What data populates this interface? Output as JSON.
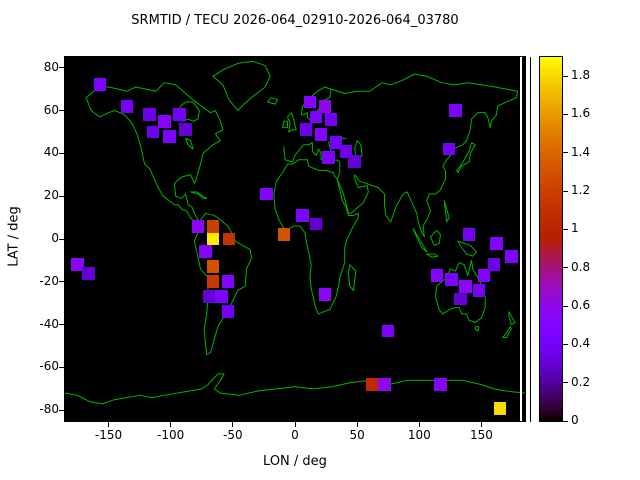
{
  "chart_data": {
    "type": "heatmap",
    "title": "SRMTID / TECU 2026-064_02910-2026-064_03780",
    "xlabel": "LON / deg",
    "ylabel": "LAT / deg",
    "xlim": [
      -185,
      185
    ],
    "ylim": [
      -85,
      85
    ],
    "xticks": [
      -150,
      -100,
      -50,
      0,
      50,
      100,
      150
    ],
    "yticks": [
      -80,
      -60,
      -40,
      -20,
      0,
      20,
      40,
      60,
      80
    ],
    "background_color": "#000000",
    "coastline_color": "#00b400",
    "grid": false,
    "legend_position": "right-colorbar",
    "colorbar": {
      "min": 0,
      "max": 1.9,
      "tick_labels": [
        "0",
        "0.2",
        "0.4",
        "0.6",
        "0.8",
        "1",
        "1.2",
        "1.4",
        "1.6",
        "1.8"
      ],
      "palette": "gnuplot-default black-violet-red-yellow"
    },
    "cell_size": {
      "lon": 10,
      "lat": 6
    },
    "cells": [
      {
        "lon": -157,
        "lat": 72,
        "value": 0.45
      },
      {
        "lon": -135,
        "lat": 62,
        "value": 0.4
      },
      {
        "lon": -117,
        "lat": 58,
        "value": 0.35
      },
      {
        "lon": -105,
        "lat": 55,
        "value": 0.5
      },
      {
        "lon": -93,
        "lat": 58,
        "value": 0.4
      },
      {
        "lon": -114,
        "lat": 50,
        "value": 0.35
      },
      {
        "lon": -101,
        "lat": 48,
        "value": 0.45
      },
      {
        "lon": -88,
        "lat": 51,
        "value": 0.3
      },
      {
        "lon": 12,
        "lat": 64,
        "value": 0.5
      },
      {
        "lon": 24,
        "lat": 62,
        "value": 0.6
      },
      {
        "lon": 17,
        "lat": 57,
        "value": 0.45
      },
      {
        "lon": 29,
        "lat": 56,
        "value": 0.4
      },
      {
        "lon": 9,
        "lat": 51,
        "value": 0.35
      },
      {
        "lon": 21,
        "lat": 49,
        "value": 0.5
      },
      {
        "lon": 33,
        "lat": 45,
        "value": 0.4
      },
      {
        "lon": 27,
        "lat": 38,
        "value": 0.45
      },
      {
        "lon": 41,
        "lat": 41,
        "value": 0.35
      },
      {
        "lon": 48,
        "lat": 36,
        "value": 0.3
      },
      {
        "lon": 129,
        "lat": 60,
        "value": 0.45
      },
      {
        "lon": 124,
        "lat": 42,
        "value": 0.4
      },
      {
        "lon": -23,
        "lat": 21,
        "value": 0.5
      },
      {
        "lon": -9,
        "lat": 2,
        "value": 1.3
      },
      {
        "lon": 6,
        "lat": 11,
        "value": 0.45
      },
      {
        "lon": 17,
        "lat": 7,
        "value": 0.3
      },
      {
        "lon": -78,
        "lat": 6,
        "value": 0.55
      },
      {
        "lon": -66,
        "lat": 6,
        "value": 1.2
      },
      {
        "lon": -66,
        "lat": 0,
        "value": 1.85
      },
      {
        "lon": -53,
        "lat": 0,
        "value": 1.1
      },
      {
        "lon": -72,
        "lat": -6,
        "value": 0.5
      },
      {
        "lon": -66,
        "lat": -13,
        "value": 1.3
      },
      {
        "lon": -66,
        "lat": -20,
        "value": 1.15
      },
      {
        "lon": -54,
        "lat": -20,
        "value": 0.5
      },
      {
        "lon": -59,
        "lat": -27,
        "value": 0.45
      },
      {
        "lon": -69,
        "lat": -27,
        "value": 0.3
      },
      {
        "lon": -54,
        "lat": -34,
        "value": 0.4
      },
      {
        "lon": -175,
        "lat": -12,
        "value": 0.55
      },
      {
        "lon": -166,
        "lat": -16,
        "value": 0.3
      },
      {
        "lon": 24,
        "lat": -26,
        "value": 0.55
      },
      {
        "lon": 75,
        "lat": -43,
        "value": 0.45
      },
      {
        "lon": 114,
        "lat": -17,
        "value": 0.5
      },
      {
        "lon": 126,
        "lat": -19,
        "value": 0.45
      },
      {
        "lon": 137,
        "lat": -22,
        "value": 0.55
      },
      {
        "lon": 148,
        "lat": -24,
        "value": 0.4
      },
      {
        "lon": 133,
        "lat": -28,
        "value": 0.3
      },
      {
        "lon": 152,
        "lat": -17,
        "value": 0.5
      },
      {
        "lon": 140,
        "lat": 2,
        "value": 0.4
      },
      {
        "lon": 162,
        "lat": -2,
        "value": 0.5
      },
      {
        "lon": 174,
        "lat": -8,
        "value": 0.45
      },
      {
        "lon": 160,
        "lat": -12,
        "value": 0.35
      },
      {
        "lon": 62,
        "lat": -68,
        "value": 1.05
      },
      {
        "lon": 72,
        "lat": -68,
        "value": 0.6
      },
      {
        "lon": 117,
        "lat": -68,
        "value": 0.5
      },
      {
        "lon": 165,
        "lat": -79,
        "value": 1.8
      }
    ]
  }
}
